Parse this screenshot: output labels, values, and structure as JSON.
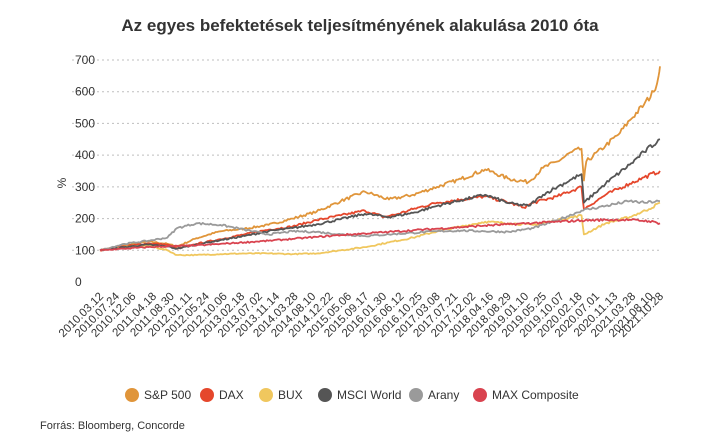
{
  "chart_data": {
    "type": "line",
    "title": "Az egyes befektetések teljesítményének alakulása 2010 óta",
    "ylabel": "%",
    "ylim": [
      0,
      700
    ],
    "yticks": [
      0,
      100,
      200,
      300,
      400,
      500,
      600,
      700
    ],
    "grid": true,
    "legend": "bottom",
    "x_tick_labels": [
      "2010.03.12",
      "2010.07.24",
      "2010.12.06",
      "2011.04.18",
      "2011.08.30",
      "2012.01.11",
      "2012.05.24",
      "2012.10.06",
      "2013.02.18",
      "2013.07.02",
      "2013.11.14",
      "2014.03.28",
      "2014.08.10",
      "2014.12.22",
      "2015.05.06",
      "2015.09.17",
      "2016.01.30",
      "2016.06.12",
      "2016.10.25",
      "2017.03.08",
      "2017.07.21",
      "2017.12.02",
      "2018.04.16",
      "2018.08.29",
      "2019.01.10",
      "2019.05.25",
      "2019.10.07",
      "2020.02.18",
      "2020.07.01",
      "2020.11.13",
      "2021.03.28",
      "2021.08.10",
      "2021.10.28"
    ],
    "x_positions": [
      0,
      0.333,
      0.673,
      1.1,
      1.47,
      1.84,
      2.2,
      2.57,
      2.93,
      3.3,
      3.66,
      4.04,
      4.41,
      4.77,
      5.15,
      5.51,
      5.88,
      6.24,
      6.62,
      6.99,
      7.36,
      7.73,
      8.1,
      8.47,
      8.83,
      9.2,
      9.57,
      9.94,
      10.3,
      10.68,
      11.05,
      11.42,
      11.63
    ],
    "series": [
      {
        "name": "S&P 500",
        "color": "#e0953a",
        "x": [
          0,
          0.5,
          1,
          1.4,
          1.6,
          2,
          2.5,
          3,
          3.5,
          4,
          4.5,
          5,
          5.5,
          6,
          6.5,
          7,
          7.5,
          8,
          8.5,
          8.9,
          9.2,
          9.5,
          9.8,
          10,
          10.05,
          10.1,
          10.5,
          10.8,
          11,
          11.3,
          11.5,
          11.6,
          11.63
        ],
        "y": [
          100,
          115,
          128,
          120,
          112,
          138,
          160,
          168,
          180,
          200,
          222,
          255,
          285,
          260,
          275,
          300,
          325,
          355,
          325,
          315,
          360,
          380,
          410,
          420,
          320,
          380,
          430,
          470,
          510,
          560,
          600,
          650,
          680
        ]
      },
      {
        "name": "DAX",
        "color": "#e5472c",
        "x": [
          0,
          0.5,
          1,
          1.4,
          1.6,
          2,
          2.5,
          3,
          3.5,
          4,
          4.5,
          5,
          5.5,
          5.9,
          6.2,
          6.5,
          7,
          7.5,
          8,
          8.5,
          8.8,
          9,
          9.5,
          10,
          10.05,
          10.5,
          11,
          11.3,
          11.63
        ],
        "y": [
          100,
          112,
          122,
          118,
          105,
          120,
          135,
          150,
          165,
          175,
          195,
          210,
          225,
          205,
          215,
          230,
          250,
          260,
          270,
          250,
          235,
          250,
          270,
          300,
          230,
          275,
          310,
          330,
          350
        ]
      },
      {
        "name": "BUX",
        "color": "#f0c75e",
        "x": [
          0,
          0.5,
          1,
          1.4,
          1.6,
          2,
          2.5,
          3,
          3.5,
          4,
          4.5,
          5,
          5.5,
          6,
          6.5,
          7,
          7.5,
          8,
          8.5,
          9,
          9.5,
          10,
          10.05,
          10.5,
          11,
          11.4,
          11.63
        ],
        "y": [
          100,
          110,
          115,
          100,
          85,
          85,
          88,
          90,
          90,
          88,
          90,
          100,
          110,
          125,
          140,
          160,
          175,
          190,
          185,
          180,
          195,
          210,
          150,
          185,
          205,
          230,
          250
        ]
      },
      {
        "name": "MSCI World",
        "color": "#555555",
        "x": [
          0,
          0.5,
          1,
          1.4,
          1.6,
          2,
          2.5,
          3,
          3.5,
          4,
          4.5,
          5,
          5.5,
          6,
          6.5,
          7,
          7.5,
          8,
          8.5,
          8.9,
          9.2,
          9.5,
          10,
          10.05,
          10.5,
          11,
          11.3,
          11.63
        ],
        "y": [
          100,
          110,
          118,
          112,
          105,
          118,
          132,
          145,
          160,
          170,
          182,
          198,
          215,
          205,
          218,
          240,
          258,
          275,
          248,
          240,
          275,
          300,
          340,
          250,
          310,
          370,
          410,
          450
        ]
      },
      {
        "name": "Arany",
        "color": "#9a9a9a",
        "x": [
          0,
          0.5,
          1,
          1.4,
          1.6,
          2,
          2.5,
          3,
          3.5,
          4,
          4.5,
          5,
          5.5,
          6,
          6.5,
          7,
          7.5,
          8,
          8.5,
          9,
          9.5,
          10,
          10.5,
          11,
          11.3,
          11.63
        ],
        "y": [
          100,
          120,
          130,
          140,
          170,
          185,
          180,
          165,
          150,
          160,
          158,
          150,
          145,
          150,
          155,
          160,
          162,
          160,
          158,
          170,
          195,
          225,
          240,
          255,
          250,
          255
        ]
      },
      {
        "name": "MAX Composite",
        "color": "#d9434f",
        "x": [
          0,
          0.5,
          1,
          1.5,
          2,
          2.5,
          3,
          3.5,
          4,
          4.5,
          5,
          5.5,
          6,
          6.5,
          7,
          7.5,
          8,
          8.5,
          9,
          9.5,
          10,
          10.5,
          11,
          11.4,
          11.63
        ],
        "y": [
          100,
          105,
          110,
          113,
          115,
          120,
          125,
          130,
          136,
          142,
          148,
          153,
          158,
          163,
          168,
          173,
          178,
          182,
          186,
          190,
          194,
          196,
          196,
          192,
          185
        ]
      }
    ]
  },
  "source": "Forrás: Bloomberg, Concorde"
}
